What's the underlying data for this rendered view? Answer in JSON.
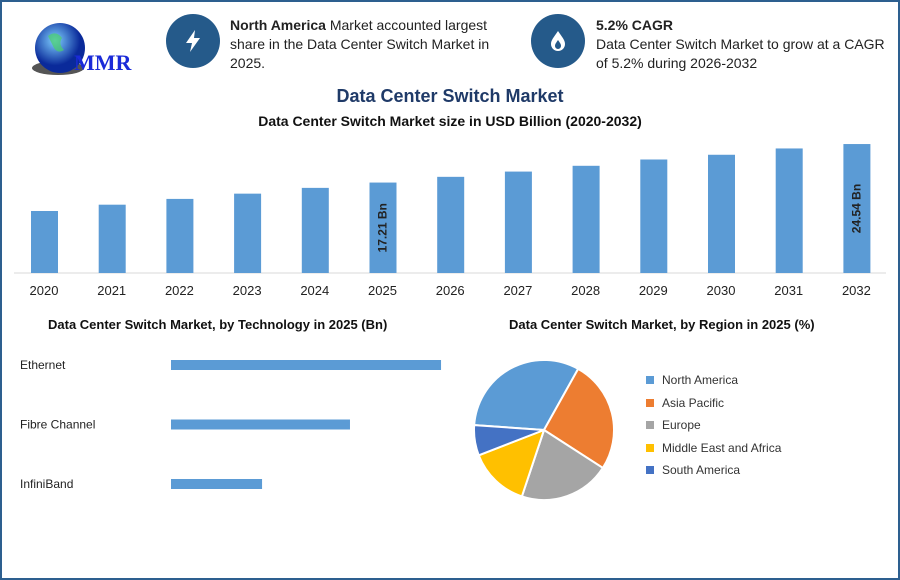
{
  "logo": {
    "text": "MMR"
  },
  "info_cards": [
    {
      "icon": "lightning-icon",
      "bold": "North America",
      "text": " Market accounted largest share in the Data Center Switch Market in 2025."
    },
    {
      "icon": "flame-drop-icon",
      "bold": "5.2% CAGR",
      "text": "Data Center Switch Market to grow at a CAGR of 5.2% during 2026-2032"
    }
  ],
  "title": "Data Center Switch Market",
  "chart_data": [
    {
      "type": "bar",
      "title": "Data Center Switch Market size in USD Billion (2020-2032)",
      "categories": [
        "2020",
        "2021",
        "2022",
        "2023",
        "2024",
        "2025",
        "2026",
        "2027",
        "2028",
        "2029",
        "2030",
        "2031",
        "2032"
      ],
      "values": [
        11.8,
        13.0,
        14.1,
        15.1,
        16.2,
        17.21,
        18.3,
        19.3,
        20.4,
        21.6,
        22.5,
        23.7,
        24.54
      ],
      "data_labels": {
        "2025": "17.21 Bn",
        "2032": "24.54 Bn"
      },
      "color": "#5b9bd5",
      "ylim": [
        0,
        25
      ]
    },
    {
      "type": "bar",
      "orientation": "horizontal",
      "title": "Data Center Switch Market, by Technology in 2025 (Bn)",
      "categories": [
        "Ethernet",
        "Fibre Channel",
        "InfiniBand"
      ],
      "values": [
        8.6,
        5.7,
        2.9
      ],
      "color": "#5b9bd5"
    },
    {
      "type": "pie",
      "title": "Data Center Switch Market, by Region in 2025 (%)",
      "categories": [
        "North America",
        "Asia Pacific",
        "Europe",
        "Middle East and Africa",
        "South America"
      ],
      "values": [
        32,
        26,
        21,
        14,
        7
      ],
      "colors": [
        "#5b9bd5",
        "#ed7d31",
        "#a5a5a5",
        "#ffc000",
        "#4472c4"
      ],
      "legend": "right"
    }
  ]
}
